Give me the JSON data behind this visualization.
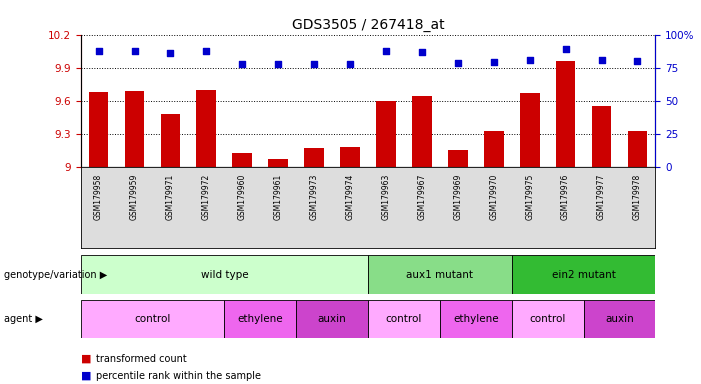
{
  "title": "GDS3505 / 267418_at",
  "samples": [
    "GSM179958",
    "GSM179959",
    "GSM179971",
    "GSM179972",
    "GSM179960",
    "GSM179961",
    "GSM179973",
    "GSM179974",
    "GSM179963",
    "GSM179967",
    "GSM179969",
    "GSM179970",
    "GSM179975",
    "GSM179976",
    "GSM179977",
    "GSM179978"
  ],
  "bar_values": [
    9.68,
    9.69,
    9.48,
    9.7,
    9.13,
    9.07,
    9.17,
    9.18,
    9.6,
    9.64,
    9.15,
    9.33,
    9.67,
    9.96,
    9.55,
    9.33
  ],
  "dot_values": [
    10.05,
    10.05,
    10.03,
    10.05,
    9.93,
    9.93,
    9.93,
    9.93,
    10.05,
    10.04,
    9.94,
    9.95,
    9.97,
    10.07,
    9.97,
    9.96
  ],
  "ylim": [
    9.0,
    10.2
  ],
  "yticks": [
    9.0,
    9.3,
    9.6,
    9.9,
    10.2
  ],
  "right_ytick_labels": [
    "0",
    "25",
    "50",
    "75",
    "100%"
  ],
  "bar_color": "#cc0000",
  "dot_color": "#0000cc",
  "background_color": "#ffffff",
  "sample_bg_color": "#dddddd",
  "genotype_groups": [
    {
      "label": "wild type",
      "start": 0,
      "end": 8,
      "color": "#ccffcc"
    },
    {
      "label": "aux1 mutant",
      "start": 8,
      "end": 12,
      "color": "#88dd88"
    },
    {
      "label": "ein2 mutant",
      "start": 12,
      "end": 16,
      "color": "#33bb33"
    }
  ],
  "agent_groups": [
    {
      "label": "control",
      "start": 0,
      "end": 4,
      "color": "#ffaaff"
    },
    {
      "label": "ethylene",
      "start": 4,
      "end": 6,
      "color": "#ee66ee"
    },
    {
      "label": "auxin",
      "start": 6,
      "end": 8,
      "color": "#cc44cc"
    },
    {
      "label": "control",
      "start": 8,
      "end": 10,
      "color": "#ffaaff"
    },
    {
      "label": "ethylene",
      "start": 10,
      "end": 12,
      "color": "#ee66ee"
    },
    {
      "label": "control",
      "start": 12,
      "end": 14,
      "color": "#ffaaff"
    },
    {
      "label": "auxin",
      "start": 14,
      "end": 16,
      "color": "#cc44cc"
    }
  ]
}
